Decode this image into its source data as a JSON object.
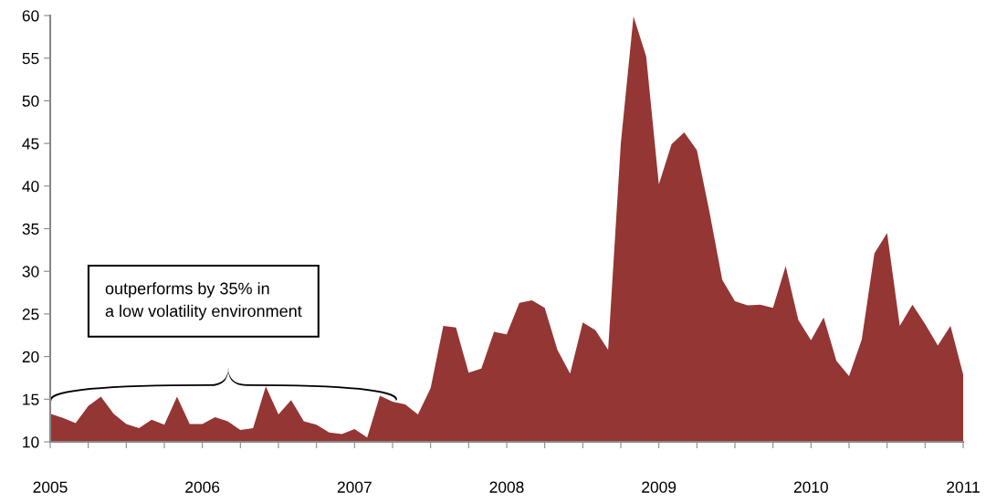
{
  "chart_data": {
    "type": "area",
    "x": [
      "2005-01",
      "2005-02",
      "2005-03",
      "2005-04",
      "2005-05",
      "2005-06",
      "2005-07",
      "2005-08",
      "2005-09",
      "2005-10",
      "2005-11",
      "2005-12",
      "2006-01",
      "2006-02",
      "2006-03",
      "2006-04",
      "2006-05",
      "2006-06",
      "2006-07",
      "2006-08",
      "2006-09",
      "2006-10",
      "2006-11",
      "2006-12",
      "2007-01",
      "2007-02",
      "2007-03",
      "2007-04",
      "2007-05",
      "2007-06",
      "2007-07",
      "2007-08",
      "2007-09",
      "2007-10",
      "2007-11",
      "2007-12",
      "2008-01",
      "2008-02",
      "2008-03",
      "2008-04",
      "2008-05",
      "2008-06",
      "2008-07",
      "2008-08",
      "2008-09",
      "2008-10",
      "2008-11",
      "2008-12",
      "2009-01",
      "2009-02",
      "2009-03",
      "2009-04",
      "2009-05",
      "2009-06",
      "2009-07",
      "2009-08",
      "2009-09",
      "2009-10",
      "2009-11",
      "2009-12",
      "2010-01",
      "2010-02",
      "2010-03",
      "2010-04",
      "2010-05",
      "2010-06",
      "2010-07",
      "2010-08",
      "2010-09",
      "2010-10",
      "2010-11",
      "2010-12",
      "2011-01"
    ],
    "series": [
      {
        "color": "#943634",
        "values": [
          13.3,
          12.8,
          12.2,
          14.2,
          15.3,
          13.3,
          12.1,
          11.6,
          12.6,
          12.0,
          15.3,
          12.1,
          12.1,
          12.9,
          12.4,
          11.4,
          11.6,
          16.5,
          13.2,
          14.9,
          12.4,
          12.0,
          11.1,
          10.9,
          11.5,
          10.5,
          15.4,
          14.7,
          14.4,
          13.2,
          16.3,
          23.6,
          23.4,
          18.1,
          18.6,
          22.9,
          22.6,
          26.3,
          26.6,
          25.7,
          20.8,
          18.0,
          24.0,
          23.1,
          20.8,
          45,
          59.9,
          55.2,
          40.2,
          44.9,
          46.3,
          44.2,
          36.9,
          29.0,
          26.5,
          26.0,
          26.1,
          25.7,
          30.6,
          24.3,
          21.9,
          24.6,
          19.5,
          17.7,
          22.0,
          32.1,
          34.5,
          23.6,
          26.1,
          23.8,
          21.3,
          23.6,
          17.9
        ]
      }
    ],
    "xlim": [
      "2005-01",
      "2011-01"
    ],
    "xticks": [
      {
        "value": "2005-01",
        "label": "2005"
      },
      {
        "value": "2005-04",
        "label": null
      },
      {
        "value": "2005-07",
        "label": null
      },
      {
        "value": "2005-10",
        "label": null
      },
      {
        "value": "2006-01",
        "label": "2006"
      },
      {
        "value": "2006-04",
        "label": null
      },
      {
        "value": "2006-07",
        "label": null
      },
      {
        "value": "2006-10",
        "label": null
      },
      {
        "value": "2007-01",
        "label": "2007"
      },
      {
        "value": "2007-04",
        "label": null
      },
      {
        "value": "2007-07",
        "label": null
      },
      {
        "value": "2007-10",
        "label": null
      },
      {
        "value": "2008-01",
        "label": "2008"
      },
      {
        "value": "2008-04",
        "label": null
      },
      {
        "value": "2008-07",
        "label": null
      },
      {
        "value": "2008-10",
        "label": null
      },
      {
        "value": "2009-01",
        "label": "2009"
      },
      {
        "value": "2009-04",
        "label": null
      },
      {
        "value": "2009-07",
        "label": null
      },
      {
        "value": "2009-10",
        "label": null
      },
      {
        "value": "2010-01",
        "label": "2010"
      },
      {
        "value": "2010-04",
        "label": null
      },
      {
        "value": "2010-07",
        "label": null
      },
      {
        "value": "2010-10",
        "label": null
      },
      {
        "value": "2011-01",
        "label": "2011"
      }
    ],
    "ylim": [
      10,
      60
    ],
    "yticks": [
      10,
      15,
      20,
      25,
      30,
      35,
      40,
      45,
      50,
      55,
      60
    ],
    "grid": false,
    "annotations": [
      "outperforms by 35% in\na low volatility environment"
    ]
  }
}
